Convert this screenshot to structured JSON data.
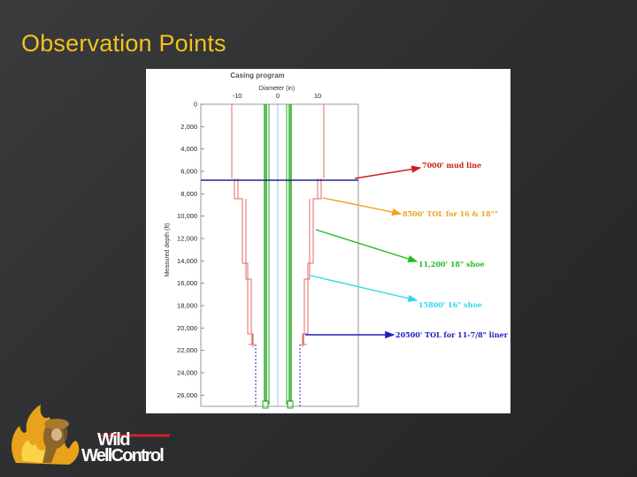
{
  "slide": {
    "title": "Observation Points"
  },
  "chart": {
    "title": "Casing program",
    "x_axis_label": "Diameter (in)",
    "y_axis_label": "Measured depth (ft)",
    "x_ticks": [
      "-10",
      "0",
      "10"
    ],
    "y_ticks": [
      "0",
      "2,000",
      "4,000",
      "6,000",
      "8,000",
      "10,000",
      "12,000",
      "14,000",
      "16,000",
      "18,000",
      "20,000",
      "22,000",
      "24,000",
      "26,000"
    ]
  },
  "chart_data": {
    "type": "diagram",
    "title": "Casing program",
    "xlabel": "Diameter (in)",
    "ylabel": "Measured depth (ft)",
    "xlim": [
      -20,
      20
    ],
    "ylim": [
      0,
      27000
    ],
    "mudline_depth": 7000,
    "annotations": [
      {
        "text": "7000' mud line",
        "color": "#cc1f1f",
        "depth": 7000
      },
      {
        "text": "8500' TOL for 16 & 18\"\"",
        "color": "#f0a020",
        "depth": 8500
      },
      {
        "text": "11,200' 18\" shoe",
        "color": "#22bb22",
        "depth": 11200
      },
      {
        "text": "15800' 16\" shoe",
        "color": "#30d8ee",
        "depth": 15800
      },
      {
        "text": "20500' TOL for 11-7/8\" liner",
        "color": "#2020c0",
        "depth": 20500
      }
    ]
  },
  "logo": {
    "line1": "Wild",
    "line2": "WellControl",
    "colors": {
      "flame": "#e8a21c",
      "red": "#d22027",
      "text": "#ffffff"
    }
  },
  "colors": {
    "title": "#f4c21b",
    "background": "#2e2f31"
  }
}
